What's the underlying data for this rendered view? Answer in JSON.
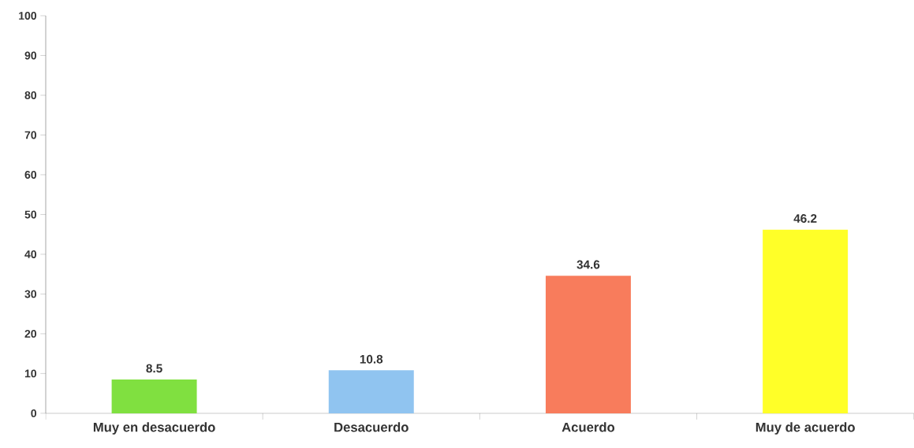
{
  "chart_data": {
    "type": "bar",
    "categories": [
      "Muy en desacuerdo",
      "Desacuerdo",
      "Acuerdo",
      "Muy de acuerdo"
    ],
    "values": [
      8.5,
      10.8,
      34.6,
      46.2
    ],
    "colors": [
      "#80e040",
      "#90c4f0",
      "#f87c5c",
      "#ffff28"
    ],
    "ylim": [
      0,
      100
    ],
    "yticks": [
      0,
      10,
      20,
      30,
      40,
      50,
      60,
      70,
      80,
      90,
      100
    ],
    "data_labels": true
  }
}
